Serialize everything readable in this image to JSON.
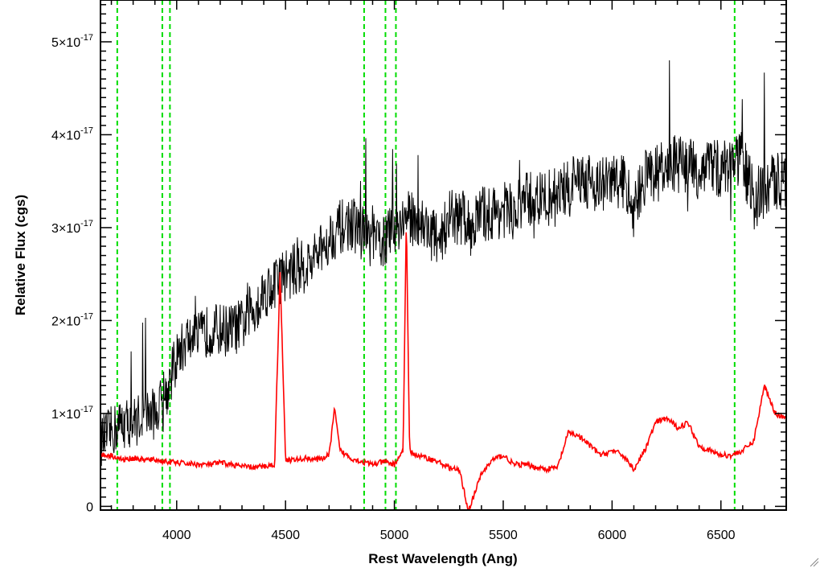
{
  "chart_data": {
    "type": "line",
    "title": "",
    "xlabel": "Rest Wavelength (Ang)",
    "ylabel": "Relative Flux (cgs)",
    "xlim": [
      3650,
      6800
    ],
    "ylim": [
      -4e-19,
      5.45e-17
    ],
    "x_ticks": [
      {
        "value": 4000,
        "label": "4000"
      },
      {
        "value": 4500,
        "label": "4500"
      },
      {
        "value": 5000,
        "label": "5000"
      },
      {
        "value": 5500,
        "label": "5500"
      },
      {
        "value": 6000,
        "label": "6000"
      },
      {
        "value": 6500,
        "label": "6500"
      }
    ],
    "y_ticks": [
      {
        "value": 0,
        "mant": "0",
        "exp": ""
      },
      {
        "value": 1e-17,
        "mant": "1×10",
        "exp": "-17"
      },
      {
        "value": 2e-17,
        "mant": "2×10",
        "exp": "-17"
      },
      {
        "value": 3e-17,
        "mant": "3×10",
        "exp": "-17"
      },
      {
        "value": 4e-17,
        "mant": "4×10",
        "exp": "-17"
      },
      {
        "value": 5e-17,
        "mant": "5×10",
        "exp": "-17"
      }
    ],
    "grid": false,
    "vertical_markers": {
      "style": "dashed",
      "color": "#00dd00",
      "x": [
        3727,
        3934,
        3969,
        4861,
        4959,
        5007,
        6563
      ]
    },
    "series": [
      {
        "color": "#000000",
        "x": [
          3650,
          3700,
          3750,
          3800,
          3850,
          3900,
          3950,
          4000,
          4050,
          4100,
          4150,
          4200,
          4250,
          4300,
          4350,
          4400,
          4450,
          4500,
          4550,
          4600,
          4650,
          4700,
          4750,
          4800,
          4850,
          4900,
          4950,
          5000,
          5050,
          5100,
          5150,
          5200,
          5250,
          5300,
          5350,
          5400,
          5450,
          5500,
          5550,
          5600,
          5650,
          5700,
          5750,
          5800,
          5850,
          5900,
          5950,
          6000,
          6050,
          6100,
          6150,
          6200,
          6250,
          6300,
          6350,
          6400,
          6450,
          6500,
          6550,
          6600,
          6650,
          6700,
          6750,
          6800
        ],
        "y": [
          7e-18,
          8e-18,
          9e-18,
          9e-18,
          1e-17,
          1e-17,
          1.2e-17,
          1.6e-17,
          1.8e-17,
          1.8e-17,
          1.9e-17,
          1.9e-17,
          1.9e-17,
          1.95e-17,
          2.1e-17,
          2.3e-17,
          2.4e-17,
          2.5e-17,
          2.55e-17,
          2.6e-17,
          2.7e-17,
          2.9e-17,
          3e-17,
          3.05e-17,
          2.95e-17,
          2.85e-17,
          2.85e-17,
          3e-17,
          3.1e-17,
          3.1e-17,
          3e-17,
          2.85e-17,
          3.1e-17,
          3.1e-17,
          3e-17,
          3.15e-17,
          3.15e-17,
          3.2e-17,
          3.15e-17,
          3.3e-17,
          3.3e-17,
          3.3e-17,
          3.4e-17,
          3.4e-17,
          3.55e-17,
          3.5e-17,
          3.45e-17,
          3.5e-17,
          3.5e-17,
          3.2e-17,
          3.55e-17,
          3.6e-17,
          3.6e-17,
          3.7e-17,
          3.65e-17,
          3.6e-17,
          3.7e-17,
          3.6e-17,
          3.7e-17,
          3.75e-17,
          3.3e-17,
          3.4e-17,
          3.5e-17,
          3.55e-17
        ]
      },
      {
        "color": "#ff0000",
        "x": [
          3650,
          3700,
          3750,
          3800,
          3850,
          3900,
          3950,
          4000,
          4050,
          4100,
          4150,
          4200,
          4250,
          4300,
          4350,
          4400,
          4450,
          4475,
          4500,
          4550,
          4600,
          4650,
          4700,
          4725,
          4750,
          4800,
          4850,
          4900,
          4950,
          5000,
          5040,
          5055,
          5070,
          5100,
          5150,
          5200,
          5250,
          5300,
          5340,
          5400,
          5450,
          5500,
          5550,
          5600,
          5650,
          5700,
          5750,
          5800,
          5850,
          5900,
          5950,
          6000,
          6050,
          6100,
          6150,
          6200,
          6250,
          6300,
          6350,
          6400,
          6450,
          6500,
          6550,
          6600,
          6650,
          6700,
          6750,
          6800
        ],
        "y": [
          5.5e-18,
          5.5e-18,
          5e-18,
          5.2e-18,
          5e-18,
          5e-18,
          4.8e-18,
          4.7e-18,
          4.6e-18,
          4.5e-18,
          4.5e-18,
          4.7e-18,
          4.5e-18,
          4.3e-18,
          4.2e-18,
          4.3e-18,
          4.5e-18,
          2.55e-17,
          5e-18,
          5e-18,
          5.2e-18,
          5e-18,
          5.5e-18,
          1.05e-17,
          6e-18,
          5.2e-18,
          4.8e-18,
          4.5e-18,
          4.8e-18,
          4.5e-18,
          6e-18,
          3.1e-17,
          6e-18,
          5.5e-18,
          5.2e-18,
          4.8e-18,
          4.2e-18,
          3.8e-18,
          -5e-19,
          3.5e-18,
          5e-18,
          5.5e-18,
          4.5e-18,
          4.5e-18,
          4.2e-18,
          4e-18,
          4.2e-18,
          8e-18,
          7.5e-18,
          6.5e-18,
          5.5e-18,
          6e-18,
          5.5e-18,
          4e-18,
          6e-18,
          9e-18,
          9.5e-18,
          8.5e-18,
          9e-18,
          6.5e-18,
          6e-18,
          5.5e-18,
          5.5e-18,
          6e-18,
          7e-18,
          1.3e-17,
          1e-17,
          9.5e-18
        ]
      }
    ]
  }
}
